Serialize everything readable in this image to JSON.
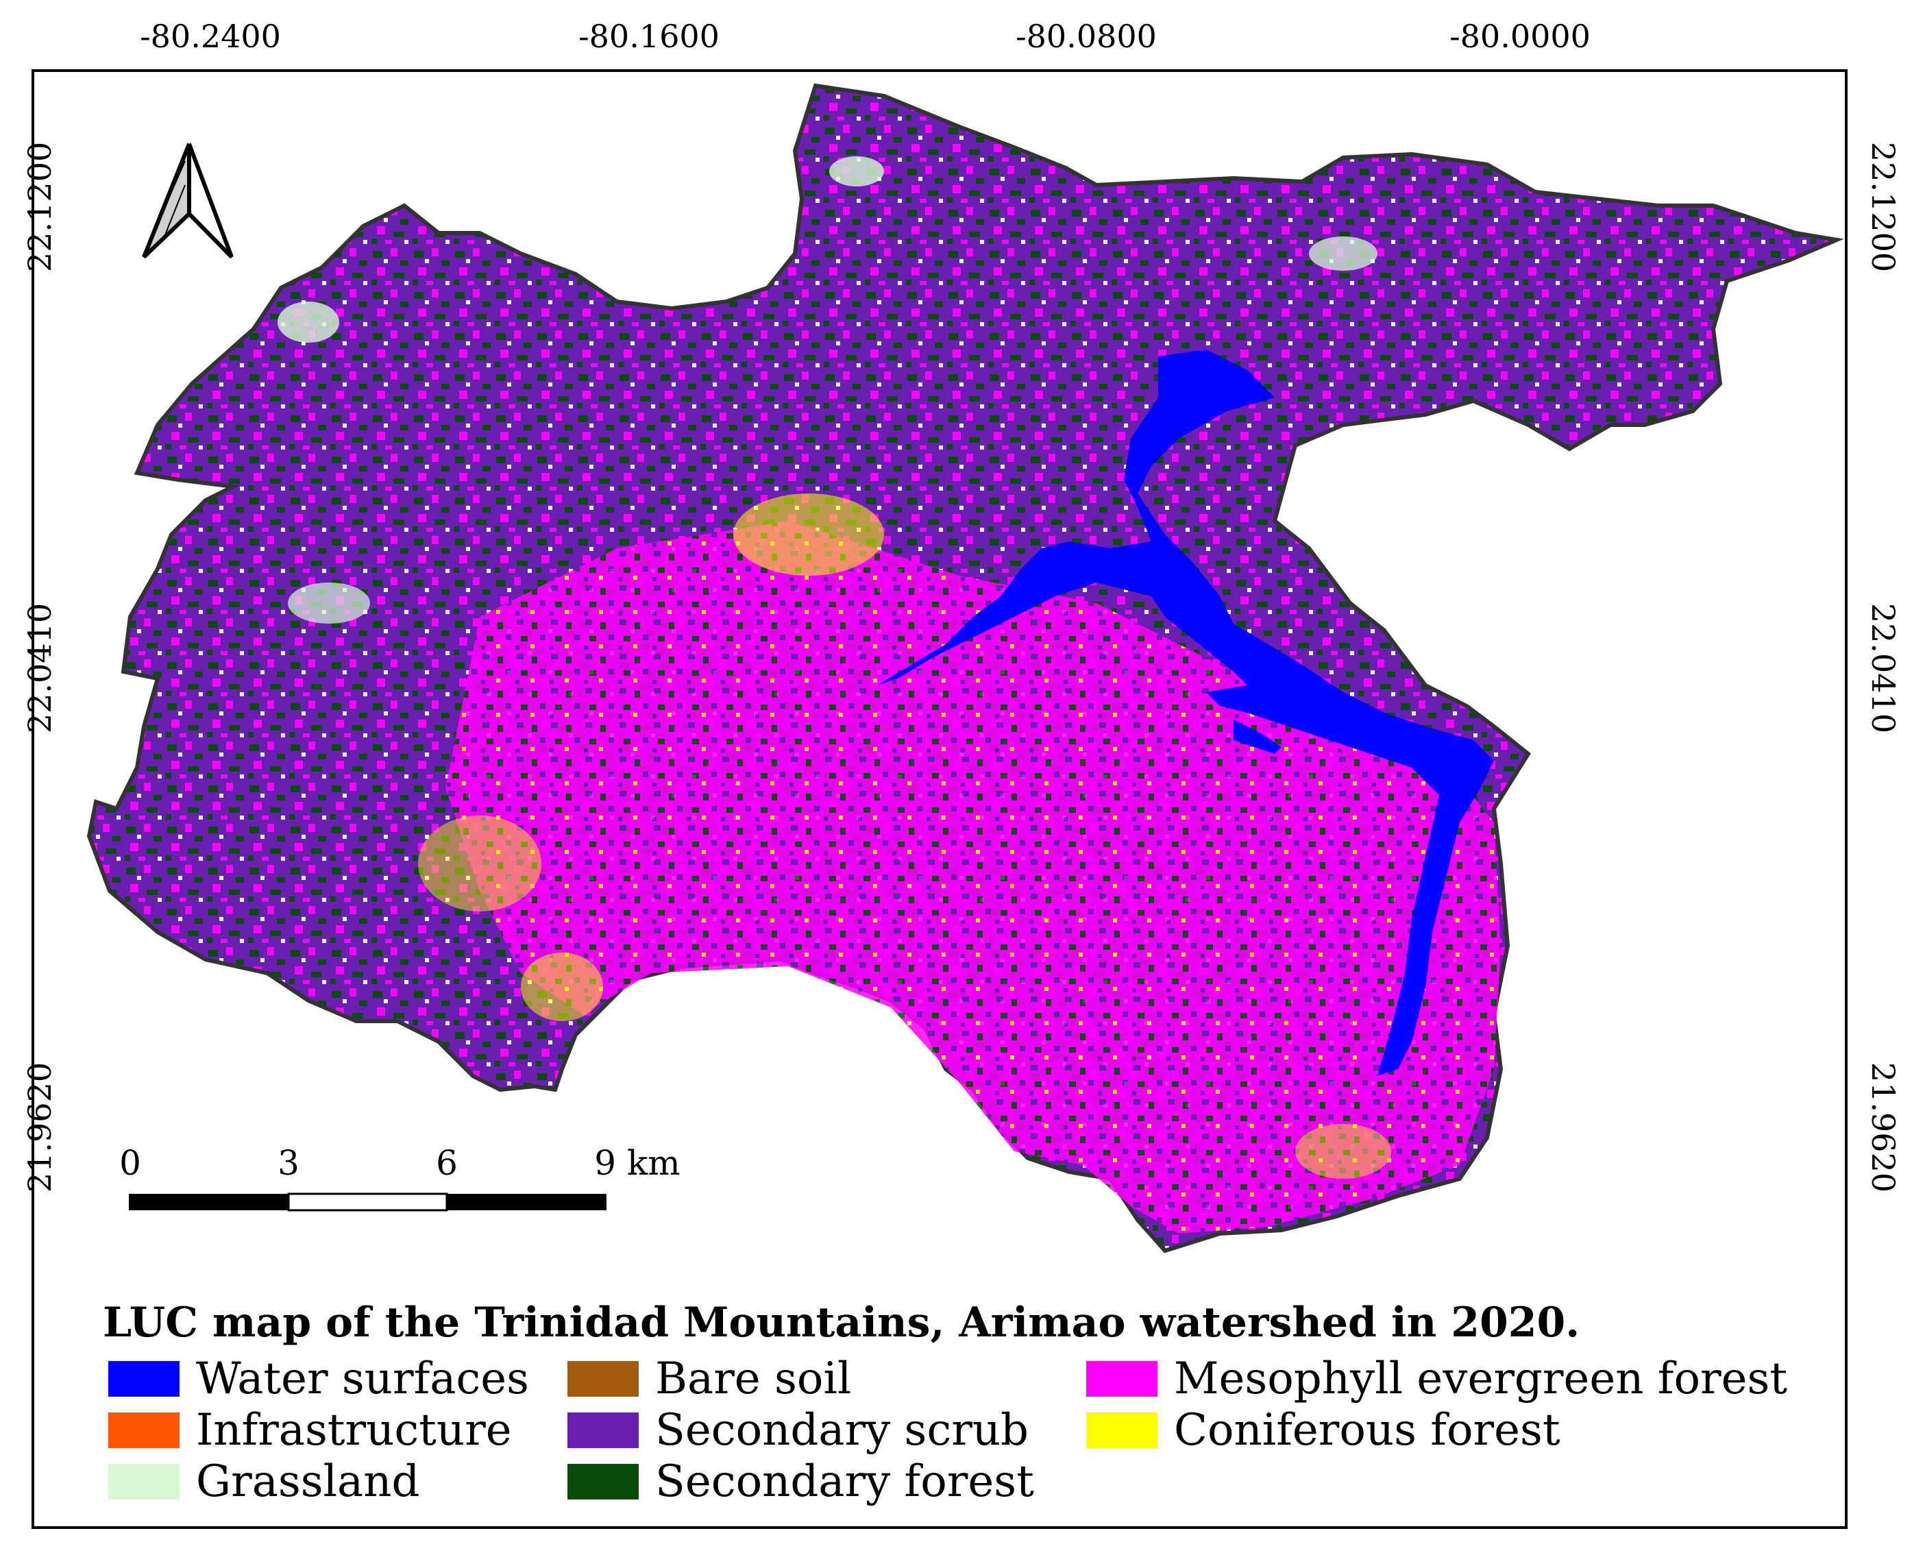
{
  "axes": {
    "longitude_ticks": [
      "-80.2400",
      "-80.1600",
      "-80.0800",
      "-80.0000"
    ],
    "latitude_ticks": [
      "22.1200",
      "22.0410",
      "21.9620"
    ]
  },
  "legend": {
    "title": "LUC map of the Trinidad Mountains, Arimao watershed in 2020.",
    "items": [
      {
        "label": "Water surfaces",
        "color": "#0000ff"
      },
      {
        "label": "Infrastructure",
        "color": "#ff5500"
      },
      {
        "label": "Grassland",
        "color": "#d9f7d5"
      },
      {
        "label": "Bare soil",
        "color": "#a25a10"
      },
      {
        "label": "Secondary scrub",
        "color": "#6a1fb0"
      },
      {
        "label": "Secondary forest",
        "color": "#0a4d0a"
      },
      {
        "label": "Mesophyll evergreen forest",
        "color": "#ff00ff"
      },
      {
        "label": "Coniferous forest",
        "color": "#ffff00"
      }
    ]
  },
  "scale_bar": {
    "labels": [
      "0",
      "3",
      "6",
      "9 km"
    ]
  },
  "north_arrow": {
    "icon": "north-arrow-icon"
  }
}
